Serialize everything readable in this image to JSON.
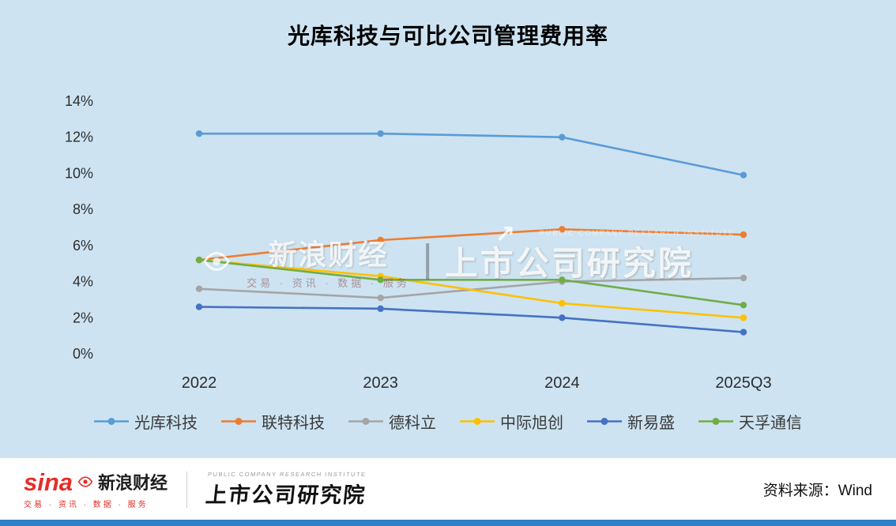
{
  "chart_data": {
    "type": "line",
    "title": "光库科技与可比公司管理费用率",
    "categories": [
      "2022",
      "2023",
      "2024",
      "2025Q3"
    ],
    "series": [
      {
        "name": "光库科技",
        "color": "#5B9BD5",
        "values": [
          12.2,
          12.2,
          12.0,
          9.9
        ]
      },
      {
        "name": "联特科技",
        "color": "#ED7D31",
        "values": [
          5.2,
          6.3,
          6.9,
          6.6
        ]
      },
      {
        "name": "德科立",
        "color": "#A5A5A5",
        "values": [
          3.6,
          3.1,
          4.0,
          4.2
        ]
      },
      {
        "name": "中际旭创",
        "color": "#FFC000",
        "values": [
          5.2,
          4.3,
          2.8,
          2.0
        ]
      },
      {
        "name": "新易盛",
        "color": "#4472C4",
        "values": [
          2.6,
          2.5,
          2.0,
          1.2
        ]
      },
      {
        "name": "天孚通信",
        "color": "#70AD47",
        "values": [
          5.2,
          4.1,
          4.1,
          2.7
        ]
      }
    ],
    "ylim": [
      0,
      14
    ],
    "ytick_labels": [
      "0%",
      "2%",
      "4%",
      "6%",
      "8%",
      "10%",
      "12%",
      "14%"
    ],
    "grid": false,
    "legend_position": "bottom"
  },
  "watermark": {
    "sina_text": "新浪财经",
    "sina_tagline": "交易 · 资讯 · 数据 · 服务",
    "institute_text": "上市公司研究院",
    "institute_en": "PUBLIC COMPANY RESEARCH INSTITUTE",
    "arrow_icon": "↗"
  },
  "footer": {
    "sina_logo": "sina",
    "sina_name": "新浪财经",
    "sina_tagline": "交易 · 资讯 · 数据 · 服务",
    "institute_en": "PUBLIC COMPANY RESEARCH INSTITUTE",
    "institute_name": "上市公司研究院",
    "source": "资料来源：Wind"
  },
  "colors": {
    "background": "#cde3f1",
    "footer_bg": "#ffffff",
    "bottom_bar": "#2e80c8",
    "sina_red": "#e52d27"
  }
}
